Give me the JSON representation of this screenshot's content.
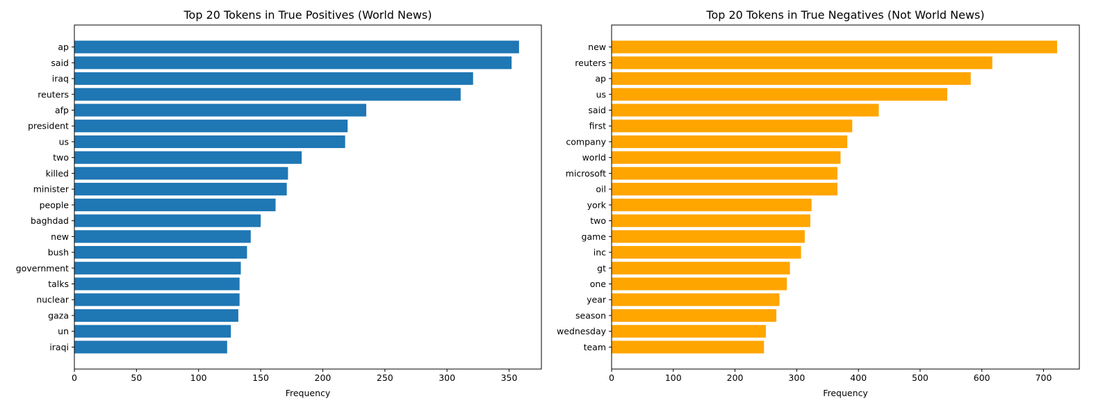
{
  "chart_data": [
    {
      "type": "bar",
      "orientation": "horizontal",
      "title": "Top 20 Tokens in True Positives (World News)",
      "xlabel": "Frequency",
      "ylabel": "",
      "color": "#1f77b4",
      "xlim": [
        0,
        376
      ],
      "xticks": [
        0,
        50,
        100,
        150,
        200,
        250,
        300,
        350
      ],
      "grid": false,
      "categories": [
        "ap",
        "said",
        "iraq",
        "reuters",
        "afp",
        "president",
        "us",
        "two",
        "killed",
        "minister",
        "people",
        "baghdad",
        "new",
        "bush",
        "government",
        "talks",
        "nuclear",
        "gaza",
        "un",
        "iraqi"
      ],
      "values": [
        358,
        352,
        321,
        311,
        235,
        220,
        218,
        183,
        172,
        171,
        162,
        150,
        142,
        139,
        134,
        133,
        133,
        132,
        126,
        123
      ]
    },
    {
      "type": "bar",
      "orientation": "horizontal",
      "title": "Top 20 Tokens in True Negatives (Not World News)",
      "xlabel": "Frequency",
      "ylabel": "",
      "color": "#ffa500",
      "xlim": [
        0,
        758
      ],
      "xticks": [
        0,
        100,
        200,
        300,
        400,
        500,
        600,
        700
      ],
      "grid": false,
      "categories": [
        "new",
        "reuters",
        "ap",
        "us",
        "said",
        "first",
        "company",
        "world",
        "microsoft",
        "oil",
        "york",
        "two",
        "game",
        "inc",
        "gt",
        "one",
        "year",
        "season",
        "wednesday",
        "team"
      ],
      "values": [
        722,
        617,
        582,
        544,
        433,
        390,
        382,
        371,
        366,
        366,
        324,
        322,
        313,
        307,
        289,
        284,
        272,
        267,
        250,
        247
      ]
    }
  ]
}
